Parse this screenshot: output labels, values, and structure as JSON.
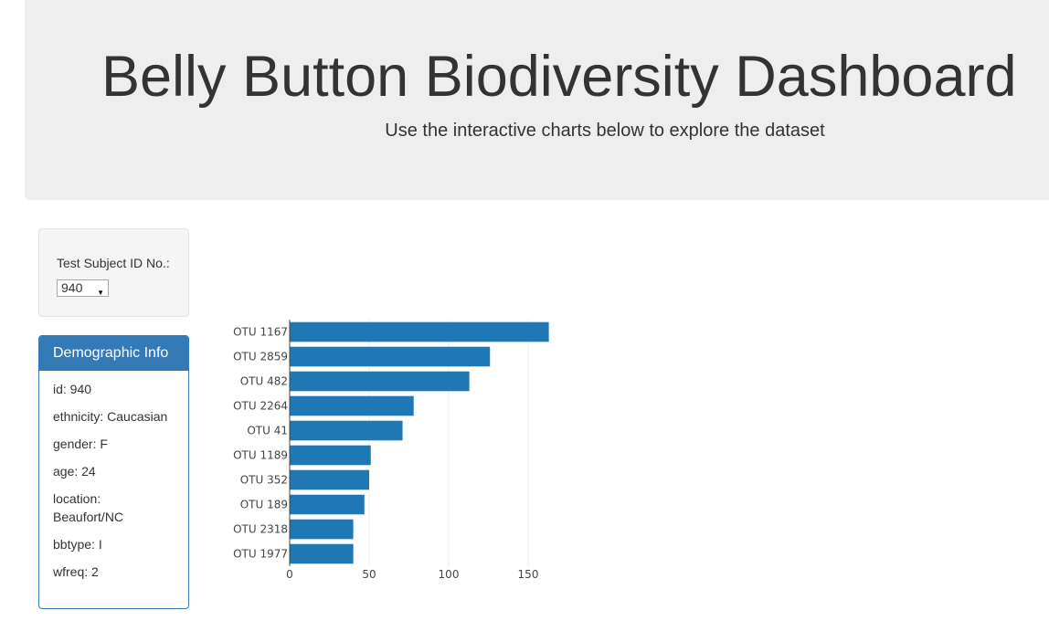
{
  "header": {
    "title": "Belly Button Biodiversity Dashboard",
    "subtitle": "Use the interactive charts below to explore the dataset"
  },
  "selector": {
    "label": "Test Subject ID No.:",
    "selected": "940"
  },
  "demographics": {
    "heading": "Demographic Info",
    "items": [
      "id: 940",
      "ethnicity: Caucasian",
      "gender: F",
      "age: 24",
      "location: Beaufort/NC",
      "bbtype: I",
      "wfreq: 2"
    ]
  },
  "colors": {
    "bar": "#1f77b4",
    "panel_primary": "#337ab7"
  },
  "chart_data": {
    "type": "bar",
    "orientation": "horizontal",
    "categories": [
      "OTU 1167",
      "OTU 2859",
      "OTU 482",
      "OTU 2264",
      "OTU 41",
      "OTU 1189",
      "OTU 352",
      "OTU 189",
      "OTU 2318",
      "OTU 1977"
    ],
    "values": [
      163,
      126,
      113,
      78,
      71,
      51,
      50,
      47,
      40,
      40
    ],
    "xlim": [
      0,
      165
    ],
    "xticks": [
      0,
      50,
      100,
      150
    ],
    "grid": "vertical",
    "title": "",
    "xlabel": "",
    "ylabel": ""
  }
}
